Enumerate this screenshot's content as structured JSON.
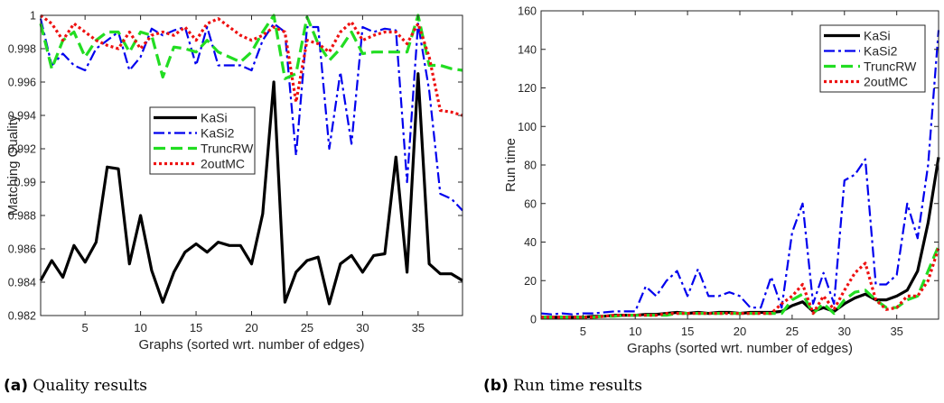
{
  "captions": [
    {
      "tag": "(a)",
      "text": "Quality results"
    },
    {
      "tag": "(b)",
      "text": "Run time results"
    }
  ],
  "chart_data": [
    {
      "type": "line",
      "title": "",
      "xlabel": "Graphs (sorted wrt. number of edges)",
      "ylabel": "Matching Quality",
      "xlim": [
        1,
        39
      ],
      "ylim": [
        0.982,
        1.0
      ],
      "xticks": [
        5,
        10,
        15,
        20,
        25,
        30,
        35
      ],
      "yticks": [
        0.982,
        0.984,
        0.986,
        0.988,
        0.99,
        0.992,
        0.994,
        0.996,
        0.998,
        1
      ],
      "ytick_labels": [
        "0.982",
        "0.984",
        "0.986",
        "0.988",
        "0.99",
        "0.992",
        "0.994",
        "0.996",
        "0.998",
        "1"
      ],
      "grid": false,
      "legend": "center-left",
      "x": [
        1,
        2,
        3,
        4,
        5,
        6,
        7,
        8,
        9,
        10,
        11,
        12,
        13,
        14,
        15,
        16,
        17,
        18,
        19,
        20,
        21,
        22,
        23,
        24,
        25,
        26,
        27,
        28,
        29,
        30,
        31,
        32,
        33,
        34,
        35,
        36,
        37,
        38,
        39
      ],
      "series": [
        {
          "name": "KaSi",
          "color": "#000000",
          "style": "solid",
          "width": 3.2,
          "values": [
            0.9841,
            0.9853,
            0.9843,
            0.9862,
            0.9852,
            0.9864,
            0.9909,
            0.9908,
            0.9851,
            0.988,
            0.9847,
            0.9828,
            0.9846,
            0.9858,
            0.9863,
            0.9858,
            0.9864,
            0.9862,
            0.9862,
            0.9851,
            0.9881,
            0.996,
            0.9828,
            0.9846,
            0.9853,
            0.9855,
            0.9827,
            0.9851,
            0.9856,
            0.9846,
            0.9856,
            0.9857,
            0.9915,
            0.9846,
            0.9965,
            0.9851,
            0.9845,
            0.9845,
            0.9841
          ]
        },
        {
          "name": "KaSi2",
          "color": "#0000ee",
          "style": "dashdot",
          "width": 2.2,
          "values": [
            0.9998,
            0.997,
            0.9977,
            0.997,
            0.9967,
            0.998,
            0.9985,
            0.999,
            0.9967,
            0.9975,
            0.9992,
            0.9988,
            0.9991,
            0.9993,
            0.997,
            0.9993,
            0.997,
            0.997,
            0.997,
            0.9967,
            0.9985,
            0.9995,
            0.999,
            0.9916,
            0.9993,
            0.9993,
            0.992,
            0.9966,
            0.9923,
            0.9993,
            0.999,
            0.9992,
            0.9991,
            0.99,
            0.9995,
            0.9955,
            0.9893,
            0.989,
            0.9883
          ]
        },
        {
          "name": "TruncRW",
          "color": "#22dd22",
          "style": "dashed",
          "width": 3.2,
          "values": [
            0.9995,
            0.9968,
            0.9985,
            0.999,
            0.9975,
            0.9985,
            0.999,
            0.999,
            0.9978,
            0.999,
            0.9988,
            0.9963,
            0.9981,
            0.998,
            0.9978,
            0.9985,
            0.9978,
            0.9975,
            0.9972,
            0.9978,
            0.999,
            1.0,
            0.9962,
            0.9965,
            0.9999,
            0.9983,
            0.9973,
            0.998,
            0.999,
            0.9977,
            0.9978,
            0.9978,
            0.9978,
            0.9978,
            1.0,
            0.997,
            0.997,
            0.9968,
            0.9967
          ]
        },
        {
          "name": "2outMC",
          "color": "#ee1111",
          "style": "dotted",
          "width": 3.2,
          "values": [
            1.0,
            0.9995,
            0.9985,
            0.9995,
            0.999,
            0.9985,
            0.9982,
            0.998,
            0.999,
            0.998,
            0.9988,
            0.999,
            0.9988,
            0.9993,
            0.9985,
            0.9995,
            0.9998,
            0.9993,
            0.9988,
            0.9985,
            0.9988,
            0.9993,
            0.999,
            0.9948,
            0.9985,
            0.9983,
            0.9978,
            0.999,
            0.9996,
            0.9985,
            0.9988,
            0.999,
            0.999,
            0.9983,
            0.9995,
            0.9975,
            0.9943,
            0.9942,
            0.994
          ]
        }
      ]
    },
    {
      "type": "line",
      "title": "",
      "xlabel": "Graphs (sorted wrt. number of edges)",
      "ylabel": "Run time",
      "xlim": [
        1,
        39
      ],
      "ylim": [
        0,
        160
      ],
      "xticks": [
        5,
        10,
        15,
        20,
        25,
        30,
        35
      ],
      "yticks": [
        0,
        20,
        40,
        60,
        80,
        100,
        120,
        140,
        160
      ],
      "ytick_labels": [
        "0",
        "20",
        "40",
        "60",
        "80",
        "100",
        "120",
        "140",
        "160"
      ],
      "grid": false,
      "legend": "top-right",
      "x": [
        1,
        2,
        3,
        4,
        5,
        6,
        7,
        8,
        9,
        10,
        11,
        12,
        13,
        14,
        15,
        16,
        17,
        18,
        19,
        20,
        21,
        22,
        23,
        24,
        25,
        26,
        27,
        28,
        29,
        30,
        31,
        32,
        33,
        34,
        35,
        36,
        37,
        38,
        39
      ],
      "series": [
        {
          "name": "KaSi",
          "color": "#000000",
          "style": "solid",
          "width": 3.2,
          "values": [
            1,
            1,
            1,
            1,
            1,
            1.5,
            1.5,
            2,
            2,
            2,
            2.5,
            2.5,
            3,
            3.5,
            3,
            3.5,
            3,
            3.5,
            3.5,
            3,
            3.5,
            3.5,
            3.5,
            4,
            7,
            9,
            4,
            6,
            4,
            8,
            11,
            13,
            10,
            10,
            12,
            15,
            25,
            50,
            84
          ]
        },
        {
          "name": "KaSi2",
          "color": "#0000ee",
          "style": "dashdot",
          "width": 2.2,
          "values": [
            3,
            2.5,
            3,
            2.5,
            3,
            3,
            3.5,
            4,
            4,
            4,
            17,
            12,
            20,
            25,
            12,
            26,
            12,
            12,
            14,
            12,
            6,
            6,
            22,
            6,
            45,
            60,
            8,
            24,
            8,
            72,
            75,
            83,
            18,
            18,
            23,
            60,
            42,
            80,
            150
          ]
        },
        {
          "name": "TruncRW",
          "color": "#22dd22",
          "style": "dashed",
          "width": 3.2,
          "values": [
            1,
            1,
            1,
            1,
            1,
            1,
            1.5,
            1.5,
            2,
            2,
            2,
            2,
            2,
            3,
            3,
            3,
            3,
            3,
            3,
            3,
            3,
            3,
            3,
            3,
            10,
            13,
            3,
            8,
            3,
            10,
            14,
            15,
            10,
            6,
            6,
            10,
            12,
            25,
            38
          ]
        },
        {
          "name": "2outMC",
          "color": "#ee1111",
          "style": "dotted",
          "width": 3.2,
          "values": [
            1,
            1,
            1,
            1,
            1,
            1,
            1.5,
            2,
            2,
            2,
            2,
            2,
            3,
            3,
            3,
            3,
            3,
            3,
            3,
            3,
            3,
            3,
            3,
            8,
            12,
            18,
            3,
            12,
            5,
            15,
            24,
            29,
            10,
            5,
            6,
            12,
            12,
            20,
            37
          ]
        }
      ]
    }
  ]
}
